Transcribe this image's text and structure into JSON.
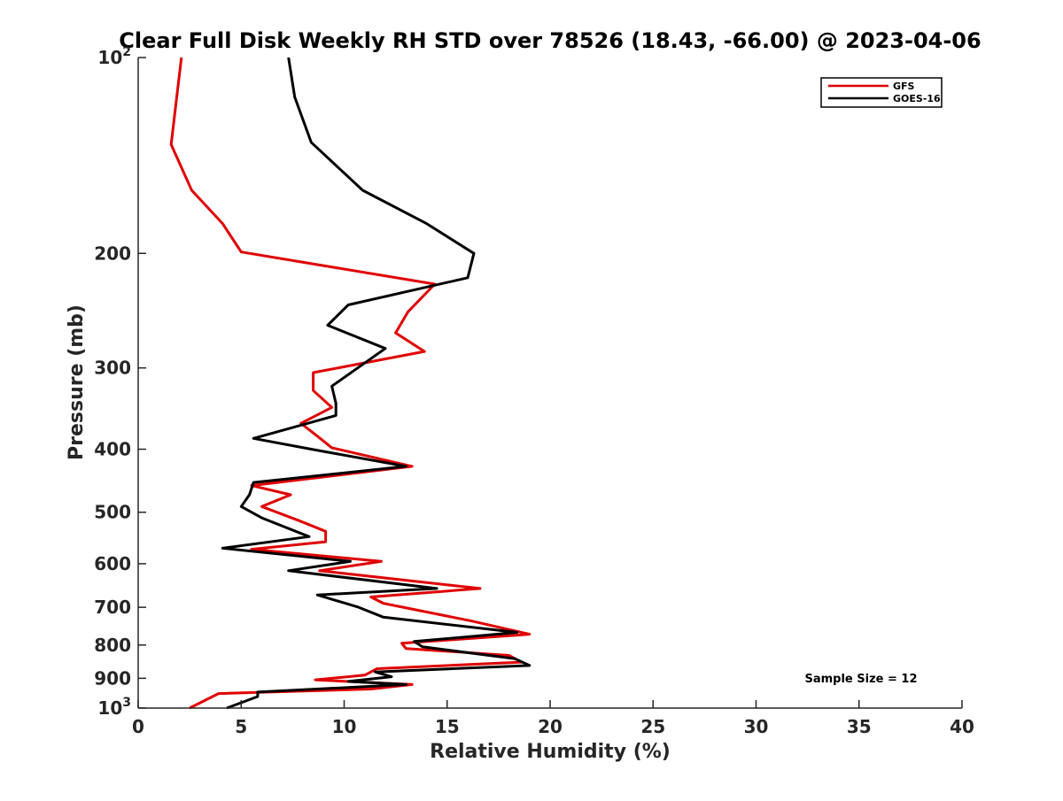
{
  "chart_data": {
    "type": "line",
    "title": "Clear Full Disk Weekly RH STD over 78526 (18.43, -66.00) @ 2023-04-06",
    "xlabel": "Relative Humidity (%)",
    "ylabel": "Pressure (mb)",
    "xlim": [
      0,
      40
    ],
    "ylim": [
      1000,
      100
    ],
    "yscale": "log",
    "y_reversed": true,
    "grid": false,
    "x_ticks": [
      {
        "value": 0,
        "label": "0"
      },
      {
        "value": 5,
        "label": "5"
      },
      {
        "value": 10,
        "label": "10"
      },
      {
        "value": 15,
        "label": "15"
      },
      {
        "value": 20,
        "label": "20"
      },
      {
        "value": 25,
        "label": "25"
      },
      {
        "value": 30,
        "label": "30"
      },
      {
        "value": 35,
        "label": "35"
      },
      {
        "value": 40,
        "label": "40"
      }
    ],
    "y_ticks": [
      {
        "value": 100,
        "base": "10",
        "exp": "2"
      },
      {
        "value": 200,
        "label": "200"
      },
      {
        "value": 300,
        "label": "300"
      },
      {
        "value": 400,
        "label": "400"
      },
      {
        "value": 500,
        "label": "500"
      },
      {
        "value": 600,
        "label": "600"
      },
      {
        "value": 700,
        "label": "700"
      },
      {
        "value": 800,
        "label": "800"
      },
      {
        "value": 900,
        "label": "900"
      },
      {
        "value": 1000,
        "base": "10",
        "exp": "3"
      }
    ],
    "legend_position": "top-right",
    "annotation": "Sample Size = 12",
    "series": [
      {
        "name": "GFS",
        "color": "#e00000",
        "points": [
          [
            2.1,
            100
          ],
          [
            1.6,
            136
          ],
          [
            2.6,
            160
          ],
          [
            4.1,
            180
          ],
          [
            5.0,
            199
          ],
          [
            14.4,
            223
          ],
          [
            13.1,
            246
          ],
          [
            12.5,
            265
          ],
          [
            13.9,
            283
          ],
          [
            8.5,
            305
          ],
          [
            8.5,
            325
          ],
          [
            9.4,
            345
          ],
          [
            7.9,
            365
          ],
          [
            8.7,
            382
          ],
          [
            9.4,
            398
          ],
          [
            13.3,
            425
          ],
          [
            5.5,
            455
          ],
          [
            7.4,
            470
          ],
          [
            6.0,
            490
          ],
          [
            7.8,
            515
          ],
          [
            9.1,
            535
          ],
          [
            9.1,
            555
          ],
          [
            5.5,
            570
          ],
          [
            11.8,
            595
          ],
          [
            8.8,
            615
          ],
          [
            16.6,
            655
          ],
          [
            11.3,
            675
          ],
          [
            11.9,
            690
          ],
          [
            16.2,
            735
          ],
          [
            19.0,
            770
          ],
          [
            12.8,
            795
          ],
          [
            13.0,
            810
          ],
          [
            18.0,
            830
          ],
          [
            18.6,
            850
          ],
          [
            11.6,
            870
          ],
          [
            11.0,
            890
          ],
          [
            8.6,
            905
          ],
          [
            13.3,
            920
          ],
          [
            11.3,
            935
          ],
          [
            3.9,
            950
          ],
          [
            2.5,
            1000
          ]
        ]
      },
      {
        "name": "GOES-16",
        "color": "#000000",
        "points": [
          [
            7.3,
            100
          ],
          [
            7.6,
            115
          ],
          [
            8.4,
            135
          ],
          [
            10.9,
            160
          ],
          [
            14.0,
            180
          ],
          [
            16.3,
            200
          ],
          [
            16.0,
            218
          ],
          [
            10.2,
            240
          ],
          [
            9.2,
            258
          ],
          [
            12.0,
            280
          ],
          [
            9.4,
            320
          ],
          [
            9.6,
            340
          ],
          [
            9.6,
            355
          ],
          [
            5.6,
            385
          ],
          [
            8.4,
            400
          ],
          [
            13.0,
            425
          ],
          [
            5.6,
            450
          ],
          [
            5.4,
            470
          ],
          [
            5.0,
            490
          ],
          [
            6.0,
            510
          ],
          [
            8.3,
            545
          ],
          [
            4.1,
            568
          ],
          [
            10.3,
            595
          ],
          [
            7.3,
            615
          ],
          [
            14.5,
            655
          ],
          [
            8.7,
            670
          ],
          [
            10.7,
            700
          ],
          [
            11.9,
            725
          ],
          [
            18.4,
            765
          ],
          [
            13.4,
            790
          ],
          [
            13.8,
            805
          ],
          [
            18.3,
            840
          ],
          [
            19.0,
            860
          ],
          [
            11.5,
            880
          ],
          [
            12.3,
            895
          ],
          [
            10.2,
            910
          ],
          [
            13.0,
            920
          ],
          [
            5.8,
            945
          ],
          [
            5.8,
            960
          ],
          [
            4.3,
            1000
          ]
        ]
      }
    ]
  }
}
